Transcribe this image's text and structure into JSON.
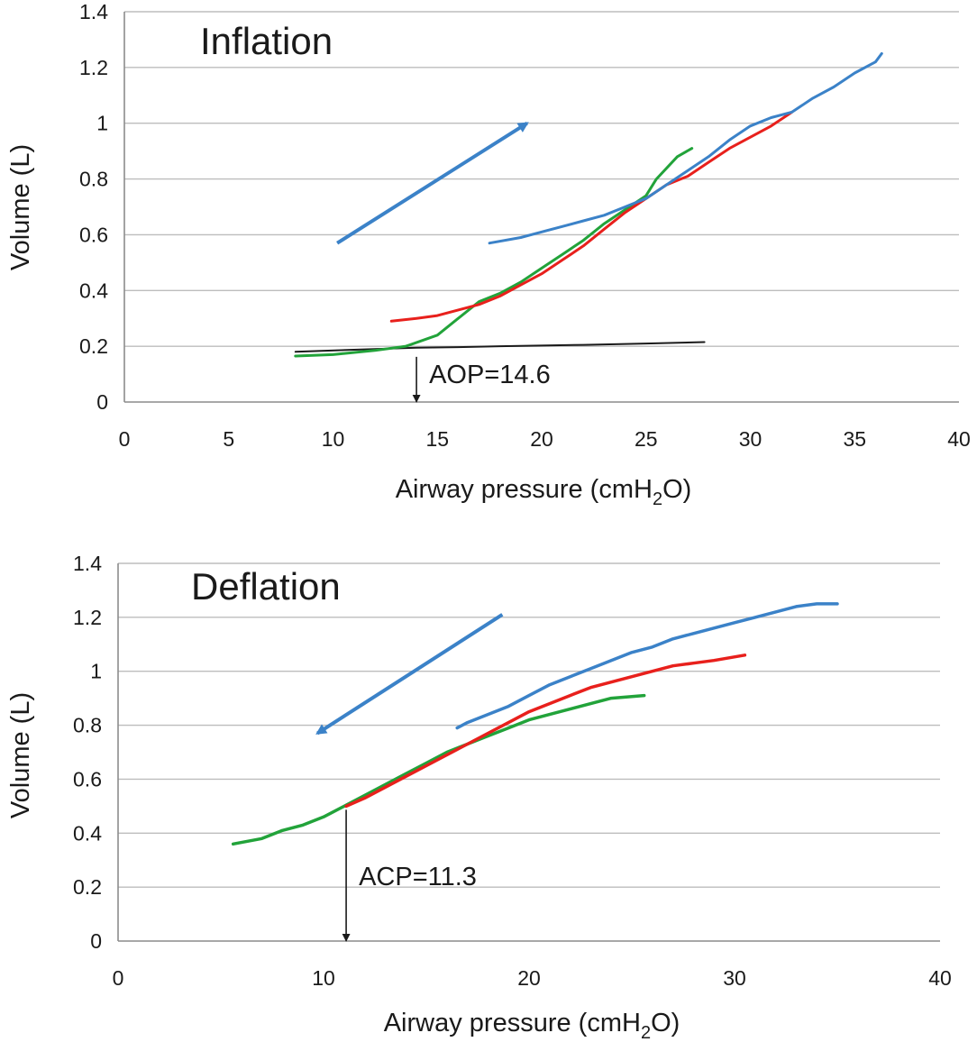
{
  "chart_data": [
    {
      "type": "line",
      "title": "Inflation",
      "xlabel": {
        "prefix": "Airway pressure (cmH",
        "sub": "2",
        "suffix": "O)"
      },
      "ylabel": "Volume (L)",
      "xlim": [
        0,
        40
      ],
      "ylim": [
        0,
        1.4
      ],
      "xticks": [
        0,
        5,
        10,
        15,
        20,
        25,
        30,
        35,
        40
      ],
      "yticks": [
        0,
        0.2,
        0.4,
        0.6,
        0.8,
        1,
        1.2,
        1.4
      ],
      "grid": true,
      "series": [
        {
          "name": "black",
          "color": "#1a1a1a",
          "width": 2,
          "points": [
            [
              8.2,
              0.18
            ],
            [
              12,
              0.19
            ],
            [
              14,
              0.195
            ],
            [
              16,
              0.197
            ],
            [
              18,
              0.2
            ],
            [
              22,
              0.205
            ],
            [
              25,
              0.21
            ],
            [
              27.8,
              0.215
            ]
          ]
        },
        {
          "name": "green",
          "color": "#22a33a",
          "width": 3,
          "points": [
            [
              8.2,
              0.165
            ],
            [
              10,
              0.17
            ],
            [
              12,
              0.185
            ],
            [
              13.5,
              0.2
            ],
            [
              15,
              0.24
            ],
            [
              16,
              0.3
            ],
            [
              17,
              0.36
            ],
            [
              18,
              0.39
            ],
            [
              19,
              0.43
            ],
            [
              20,
              0.48
            ],
            [
              21,
              0.53
            ],
            [
              22,
              0.58
            ],
            [
              23,
              0.64
            ],
            [
              24,
              0.69
            ],
            [
              25,
              0.74
            ],
            [
              25.5,
              0.8
            ],
            [
              26.5,
              0.88
            ],
            [
              27.2,
              0.91
            ]
          ]
        },
        {
          "name": "red",
          "color": "#e8201c",
          "width": 3,
          "points": [
            [
              12.8,
              0.29
            ],
            [
              14,
              0.3
            ],
            [
              15,
              0.31
            ],
            [
              16,
              0.33
            ],
            [
              17,
              0.35
            ],
            [
              18,
              0.38
            ],
            [
              19,
              0.42
            ],
            [
              20,
              0.46
            ],
            [
              21,
              0.51
            ],
            [
              22,
              0.56
            ],
            [
              23,
              0.62
            ],
            [
              24,
              0.68
            ],
            [
              25,
              0.73
            ],
            [
              26,
              0.78
            ],
            [
              27,
              0.81
            ],
            [
              28,
              0.86
            ],
            [
              29,
              0.91
            ],
            [
              30,
              0.95
            ],
            [
              31,
              0.99
            ],
            [
              32,
              1.04
            ]
          ]
        },
        {
          "name": "blue",
          "color": "#3b82c8",
          "width": 3,
          "points": [
            [
              17.5,
              0.57
            ],
            [
              19,
              0.59
            ],
            [
              20,
              0.61
            ],
            [
              21,
              0.63
            ],
            [
              22,
              0.65
            ],
            [
              23,
              0.67
            ],
            [
              24,
              0.7
            ],
            [
              25,
              0.73
            ],
            [
              26,
              0.78
            ],
            [
              27,
              0.83
            ],
            [
              28,
              0.88
            ],
            [
              29,
              0.94
            ],
            [
              30,
              0.99
            ],
            [
              31,
              1.02
            ],
            [
              32,
              1.04
            ],
            [
              33,
              1.09
            ],
            [
              34,
              1.13
            ],
            [
              35,
              1.18
            ],
            [
              36,
              1.22
            ],
            [
              36.3,
              1.25
            ]
          ]
        }
      ],
      "direction_arrow": {
        "from": [
          10.2,
          0.57
        ],
        "to": [
          19.3,
          1.0
        ],
        "color": "#3b82c8"
      },
      "annotation": {
        "text": "AOP=14.6",
        "x": 14.0,
        "y_top": 0.175,
        "y_bottom": 0.0
      }
    },
    {
      "type": "line",
      "title": "Deflation",
      "xlabel": {
        "prefix": "Airway pressure (cmH",
        "sub": "2",
        "suffix": "O)"
      },
      "ylabel": "Volume (L)",
      "xlim": [
        0,
        40
      ],
      "ylim": [
        0,
        1.4
      ],
      "xticks": [
        0,
        10,
        20,
        30,
        40
      ],
      "yticks": [
        0,
        0.2,
        0.4,
        0.6,
        0.8,
        1,
        1.2,
        1.4
      ],
      "grid": true,
      "series": [
        {
          "name": "green",
          "color": "#22a33a",
          "width": 3.5,
          "points": [
            [
              5.6,
              0.36
            ],
            [
              7,
              0.38
            ],
            [
              8,
              0.41
            ],
            [
              9,
              0.43
            ],
            [
              10,
              0.46
            ],
            [
              11,
              0.5
            ],
            [
              12,
              0.54
            ],
            [
              13,
              0.58
            ],
            [
              14,
              0.62
            ],
            [
              15,
              0.66
            ],
            [
              16,
              0.7
            ],
            [
              17,
              0.73
            ],
            [
              18,
              0.76
            ],
            [
              19,
              0.79
            ],
            [
              20,
              0.82
            ],
            [
              21,
              0.84
            ],
            [
              22,
              0.86
            ],
            [
              23,
              0.88
            ],
            [
              24,
              0.9
            ],
            [
              25.6,
              0.91
            ]
          ]
        },
        {
          "name": "red",
          "color": "#e8201c",
          "width": 3.5,
          "points": [
            [
              11.1,
              0.5
            ],
            [
              12,
              0.53
            ],
            [
              13,
              0.57
            ],
            [
              14,
              0.61
            ],
            [
              15,
              0.65
            ],
            [
              16,
              0.69
            ],
            [
              17,
              0.73
            ],
            [
              18,
              0.77
            ],
            [
              19,
              0.81
            ],
            [
              20,
              0.85
            ],
            [
              21,
              0.88
            ],
            [
              22,
              0.91
            ],
            [
              23,
              0.94
            ],
            [
              24,
              0.96
            ],
            [
              25,
              0.98
            ],
            [
              26,
              1.0
            ],
            [
              27,
              1.02
            ],
            [
              28,
              1.03
            ],
            [
              29,
              1.04
            ],
            [
              30.5,
              1.06
            ]
          ]
        },
        {
          "name": "blue",
          "color": "#3b82c8",
          "width": 3.5,
          "points": [
            [
              16.5,
              0.79
            ],
            [
              17,
              0.81
            ],
            [
              18,
              0.84
            ],
            [
              19,
              0.87
            ],
            [
              20,
              0.91
            ],
            [
              21,
              0.95
            ],
            [
              22,
              0.98
            ],
            [
              23,
              1.01
            ],
            [
              24,
              1.04
            ],
            [
              25,
              1.07
            ],
            [
              26,
              1.09
            ],
            [
              27,
              1.12
            ],
            [
              28,
              1.14
            ],
            [
              29,
              1.16
            ],
            [
              30,
              1.18
            ],
            [
              31,
              1.2
            ],
            [
              32,
              1.22
            ],
            [
              33,
              1.24
            ],
            [
              34,
              1.25
            ],
            [
              35,
              1.25
            ]
          ]
        }
      ],
      "direction_arrow": {
        "from": [
          18.7,
          1.21
        ],
        "to": [
          9.7,
          0.77
        ],
        "color": "#3b82c8"
      },
      "annotation": {
        "text": "ACP=11.3",
        "x": 11.1,
        "y_top": 0.5,
        "y_bottom": 0.0
      }
    }
  ]
}
